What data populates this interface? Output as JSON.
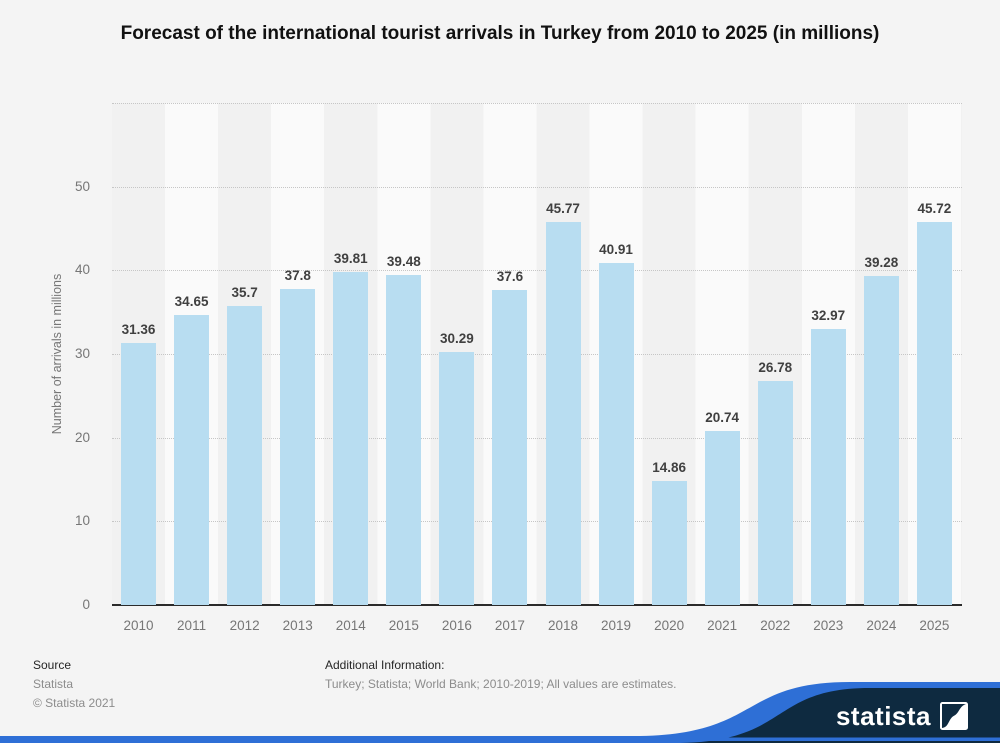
{
  "title": "Forecast of the international tourist arrivals in Turkey from 2010 to 2025 (in millions)",
  "chart_data": {
    "type": "bar",
    "categories": [
      "2010",
      "2011",
      "2012",
      "2013",
      "2014",
      "2015",
      "2016",
      "2017",
      "2018",
      "2019",
      "2020",
      "2021",
      "2022",
      "2023",
      "2024",
      "2025"
    ],
    "values": [
      31.36,
      34.65,
      35.7,
      37.8,
      39.81,
      39.48,
      30.29,
      37.6,
      45.77,
      40.91,
      14.86,
      20.74,
      26.78,
      32.97,
      39.28,
      45.72
    ],
    "title": "Forecast of the international tourist arrivals in Turkey from 2010 to 2025 (in millions)",
    "xlabel": "",
    "ylabel": "Number of arrivals in millions",
    "ylim": [
      0,
      60
    ],
    "yticks": [
      0,
      10,
      20,
      30,
      40,
      50
    ],
    "grid": "horizontal-dotted",
    "legend": "none",
    "bar_color": "#b8ddf1"
  },
  "footer": {
    "source_label": "Source",
    "source_name": "Statista",
    "copyright": "© Statista 2021",
    "additional_info_label": "Additional Information:",
    "additional_info": "Turkey; Statista; World Bank; 2010-2019; All values are estimates."
  },
  "branding": {
    "logo_text": "statista",
    "banner_blue": "#2e6fd6",
    "banner_navy": "#0e2a40"
  }
}
